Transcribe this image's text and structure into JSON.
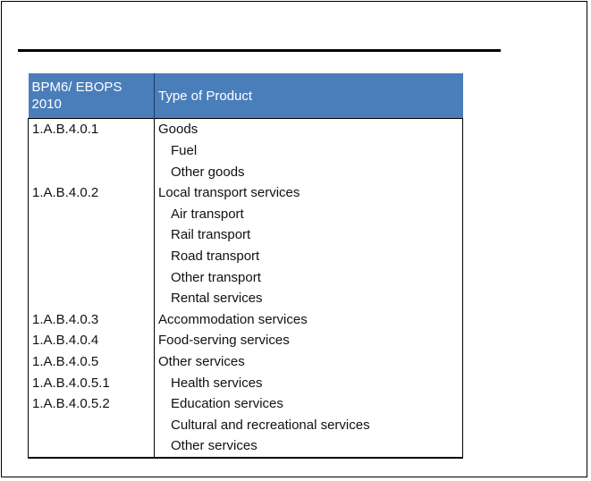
{
  "table": {
    "headers": [
      "BPM6/ EBOPS 2010",
      "Type of Product"
    ],
    "rows": [
      {
        "code": "1.A.B.4.0.1",
        "product": "Goods",
        "indent": 0
      },
      {
        "code": "",
        "product": "Fuel",
        "indent": 1
      },
      {
        "code": "",
        "product": "Other goods",
        "indent": 1
      },
      {
        "code": "1.A.B.4.0.2",
        "product": "Local transport services",
        "indent": 0
      },
      {
        "code": "",
        "product": "Air transport",
        "indent": 1
      },
      {
        "code": "",
        "product": "Rail transport",
        "indent": 1
      },
      {
        "code": "",
        "product": "Road transport",
        "indent": 1
      },
      {
        "code": "",
        "product": "Other transport",
        "indent": 1
      },
      {
        "code": "",
        "product": "Rental services",
        "indent": 1
      },
      {
        "code": "1.A.B.4.0.3",
        "product": "Accommodation services",
        "indent": 0
      },
      {
        "code": "1.A.B.4.0.4",
        "product": "Food-serving services",
        "indent": 0
      },
      {
        "code": "1.A.B.4.0.5",
        "product": "Other services",
        "indent": 0
      },
      {
        "code": "1.A.B.4.0.5.1",
        "product": "Health services",
        "indent": 1
      },
      {
        "code": "1.A.B.4.0.5.2",
        "product": "Education services",
        "indent": 1
      },
      {
        "code": "",
        "product": "Cultural and recreational services",
        "indent": 1
      },
      {
        "code": "",
        "product": "Other services",
        "indent": 1
      }
    ]
  },
  "colors": {
    "header_bg": "#4a7ebb",
    "header_text": "#ffffff",
    "text": "#111111",
    "rule": "#000000"
  }
}
